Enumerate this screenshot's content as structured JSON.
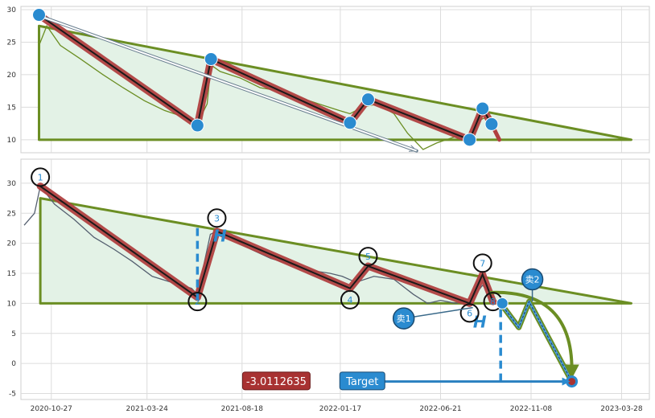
{
  "chart_data": [
    {
      "type": "line",
      "panel": "top",
      "ylim": [
        8,
        30.5
      ],
      "y_ticks": [
        10,
        15,
        20,
        25,
        30
      ],
      "grid": true,
      "colors": {
        "price": "#6b8e23",
        "triangle": "#6b8e23",
        "zigzag": "#b04040",
        "point": "#2a8bd0"
      },
      "price_series": {
        "x": [
          "2020-10-08",
          "2020-10-20",
          "2020-11-10",
          "2020-12-10",
          "2021-01-15",
          "2021-02-15",
          "2021-03-20",
          "2021-04-20",
          "2021-05-20",
          "2021-06-10",
          "2021-06-25",
          "2021-07-01",
          "2021-07-15",
          "2021-08-15",
          "2021-09-15",
          "2021-10-15",
          "2021-11-15",
          "2021-12-15",
          "2022-01-15",
          "2022-02-01",
          "2022-02-20",
          "2022-03-15",
          "2022-04-10",
          "2022-05-01",
          "2022-05-25",
          "2022-06-15",
          "2022-07-15",
          "2022-08-10",
          "2022-08-20",
          "2022-09-01"
        ],
        "y": [
          24.5,
          27.5,
          24.5,
          22.5,
          20,
          18,
          16,
          14.5,
          13.5,
          12.5,
          15.5,
          21.5,
          20.5,
          19.5,
          18,
          17.5,
          16.5,
          15.5,
          14.5,
          14,
          15,
          15.5,
          14,
          11,
          8.5,
          9.5,
          10.5,
          10.5,
          13,
          13.5
        ]
      },
      "zigzag": [
        {
          "x": "2020-10-08",
          "y": 29.2
        },
        {
          "x": "2021-06-10",
          "y": 12.2
        },
        {
          "x": "2021-07-01",
          "y": 22.4
        },
        {
          "x": "2022-02-01",
          "y": 12.6
        },
        {
          "x": "2022-03-01",
          "y": 16.2
        },
        {
          "x": "2022-08-05",
          "y": 10.0
        },
        {
          "x": "2022-08-25",
          "y": 14.8
        },
        {
          "x": "2022-09-08",
          "y": 12.4
        }
      ],
      "zigzag_tail": {
        "x": "2022-09-20",
        "y": 10.0
      },
      "triangle": [
        {
          "x": "2020-10-08",
          "y": 27.5
        },
        {
          "x": "2023-04-12",
          "y": 10.0
        },
        {
          "x": "2020-10-08",
          "y": 10.0
        }
      ],
      "arrow": {
        "from": {
          "x": "2020-10-10",
          "y": 29.0
        },
        "to": {
          "x": "2022-05-15",
          "y": 8.3
        }
      }
    },
    {
      "type": "line",
      "panel": "bottom",
      "ylim": [
        -6,
        34
      ],
      "y_ticks": [
        -5,
        0,
        5,
        10,
        15,
        20,
        25,
        30
      ],
      "x_ticks": [
        "2020-10-27",
        "2021-03-24",
        "2021-08-18",
        "2022-01-17",
        "2022-06-21",
        "2022-11-08",
        "2023-03-28"
      ],
      "grid": true,
      "colors": {
        "price": "#556070",
        "triangle": "#6b8e23",
        "zigzag": "#b04040",
        "label": "#2a8bd0",
        "target_box": "#2a8bd0",
        "value_box": "#a83232"
      },
      "price_series": {
        "x": [
          "2020-09-15",
          "2020-10-01",
          "2020-10-10",
          "2020-11-01",
          "2020-12-01",
          "2021-01-01",
          "2021-02-01",
          "2021-03-01",
          "2021-04-01",
          "2021-05-01",
          "2021-06-01",
          "2021-06-10",
          "2021-06-30",
          "2021-07-10",
          "2021-08-01",
          "2021-09-01",
          "2021-10-01",
          "2021-11-01",
          "2021-12-01",
          "2022-01-01",
          "2022-01-20",
          "2022-02-10",
          "2022-03-10",
          "2022-04-10",
          "2022-05-10",
          "2022-06-01",
          "2022-06-21",
          "2022-07-15",
          "2022-08-10",
          "2022-08-25",
          "2022-09-05"
        ],
        "y": [
          23,
          25,
          29.5,
          26.5,
          24,
          21,
          19,
          17,
          14.5,
          13.5,
          12.5,
          11.5,
          21.5,
          22,
          21,
          19,
          17.5,
          16.5,
          15.5,
          15,
          14.5,
          13.5,
          14.5,
          14,
          11.5,
          10,
          10.5,
          10,
          11,
          13,
          12
        ]
      },
      "zigzag": [
        {
          "x": "2020-10-10",
          "y": 29.5
        },
        {
          "x": "2021-06-10",
          "y": 11.0
        },
        {
          "x": "2021-07-10",
          "y": 22.0
        },
        {
          "x": "2022-02-01",
          "y": 12.5
        },
        {
          "x": "2022-03-01",
          "y": 16.2
        },
        {
          "x": "2022-08-05",
          "y": 10.0
        },
        {
          "x": "2022-08-25",
          "y": 14.8
        },
        {
          "x": "2022-09-10",
          "y": 10.3
        }
      ],
      "zigzag_tail": {
        "x": "2022-09-22",
        "y": 10.0
      },
      "triangle": [
        {
          "x": "2020-10-10",
          "y": 27.5
        },
        {
          "x": "2023-04-12",
          "y": 10.0
        },
        {
          "x": "2020-10-10",
          "y": 10.0
        }
      ],
      "wave_labels": [
        {
          "text": "1",
          "x": "2020-10-10",
          "y": 31.0
        },
        {
          "text": "2",
          "x": "2021-06-10",
          "y": 10.3
        },
        {
          "text": "3",
          "x": "2021-07-10",
          "y": 24.2
        },
        {
          "text": "4",
          "x": "2022-02-01",
          "y": 10.6
        },
        {
          "text": "5",
          "x": "2022-03-01",
          "y": 17.8
        },
        {
          "text": "6",
          "x": "2022-08-05",
          "y": 8.4
        },
        {
          "text": "7",
          "x": "2022-08-25",
          "y": 16.7
        },
        {
          "text": "8",
          "x": "2022-09-10",
          "y": 10.3
        }
      ],
      "h_lines": [
        {
          "label": "H",
          "x": "2021-06-10",
          "y_from": 10.5,
          "y_to": 23.2
        },
        {
          "label": "H",
          "x": "2022-09-22",
          "y_from": -3.0,
          "y_to": 9.5
        }
      ],
      "projection": {
        "path": [
          {
            "x": "2022-09-22",
            "y": 10.0
          },
          {
            "x": "2022-10-20",
            "y": 6.0
          },
          {
            "x": "2022-11-05",
            "y": 10.3
          },
          {
            "x": "2023-01-10",
            "y": -3.0
          }
        ],
        "curve_from": {
          "x": "2022-09-05",
          "y": 11.8
        },
        "curve_to": {
          "x": "2023-01-10",
          "y": -1.5
        }
      },
      "sell_markers": [
        {
          "text": "卖1",
          "x": "2022-04-25",
          "y": 7.5,
          "pointer": {
            "x": "2022-08-10",
            "y": 9.3
          }
        },
        {
          "text": "卖2",
          "x": "2022-11-10",
          "y": 14.0,
          "pointer": {
            "x": "2022-11-10",
            "y": 10.3
          }
        }
      ],
      "target_box": {
        "label": "Target",
        "x": "2022-02-20",
        "y": -2.9
      },
      "target_arrow": {
        "from": {
          "x": "2022-03-10",
          "y": -3.0
        },
        "to": {
          "x": "2023-01-05",
          "y": -3.0
        }
      },
      "target_point": {
        "x": "2023-01-10",
        "y": -3.0
      },
      "value_box": {
        "text": "-3.0112635",
        "x": "2021-10-10",
        "y": -2.9
      }
    }
  ]
}
